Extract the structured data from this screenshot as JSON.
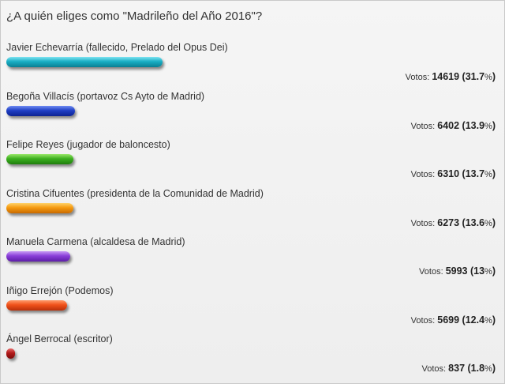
{
  "title": "¿A quién eliges como \"Madrileño del Año 2016\"?",
  "votes_label": "Votos:",
  "chart_data": {
    "type": "bar",
    "orientation": "horizontal",
    "title": "¿A quién eliges como \"Madrileño del Año 2016\"?",
    "categories": [
      "Javier Echevarría (fallecido, Prelado del Opus Dei)",
      "Begoña Villacís (portavoz Cs Ayto de Madrid)",
      "Felipe Reyes (jugador de baloncesto)",
      "Cristina Cifuentes (presidenta de la Comunidad de Madrid)",
      "Manuela Carmena (alcaldesa de Madrid)",
      "Iñigo Errejón (Podemos)",
      "Ángel Berrocal (escritor)"
    ],
    "values": [
      14619,
      6402,
      6310,
      6273,
      5993,
      5699,
      837
    ],
    "percents": [
      "31.7",
      "13.9",
      "13.7",
      "13.6",
      "13",
      "12.4",
      "1.8"
    ],
    "colors": [
      [
        "#7fe4f2",
        "#1aaec4",
        "#0a7f92"
      ],
      [
        "#6f8cf2",
        "#1f3fc4",
        "#0c2392"
      ],
      [
        "#9ae86a",
        "#3cb020",
        "#1f7d0c"
      ],
      [
        "#ffd36a",
        "#f59a10",
        "#c86a00"
      ],
      [
        "#c79af5",
        "#8a3fd8",
        "#5d1ea6"
      ],
      [
        "#ff9a6a",
        "#f0521a",
        "#b8300a"
      ],
      [
        "#e86a6a",
        "#b01a1a",
        "#7d0c0c"
      ]
    ]
  }
}
